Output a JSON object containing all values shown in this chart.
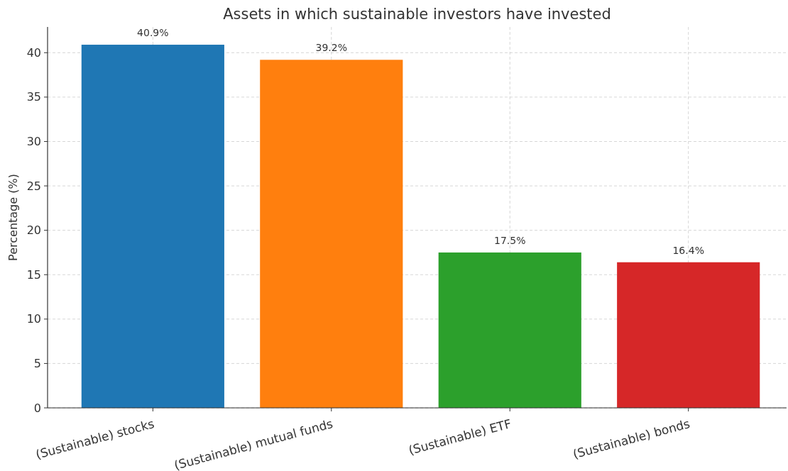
{
  "chart_data": {
    "type": "bar",
    "title": "Assets in which sustainable investors have invested",
    "ylabel": "Percentage (%)",
    "categories": [
      "(Sustainable) stocks",
      "(Sustainable) mutual funds",
      "(Sustainable) ETF",
      "(Sustainable) bonds"
    ],
    "values": [
      40.9,
      39.2,
      17.5,
      16.4
    ],
    "colors": [
      "#1f77b4",
      "#ff7f0e",
      "#2ca02c",
      "#d62728"
    ],
    "value_labels": [
      "40.9%",
      "39.2%",
      "17.5%",
      "16.4%"
    ],
    "ylim": [
      0,
      42.9
    ],
    "yticks": [
      0,
      5,
      10,
      15,
      20,
      25,
      30,
      35,
      40
    ],
    "grid": true
  }
}
